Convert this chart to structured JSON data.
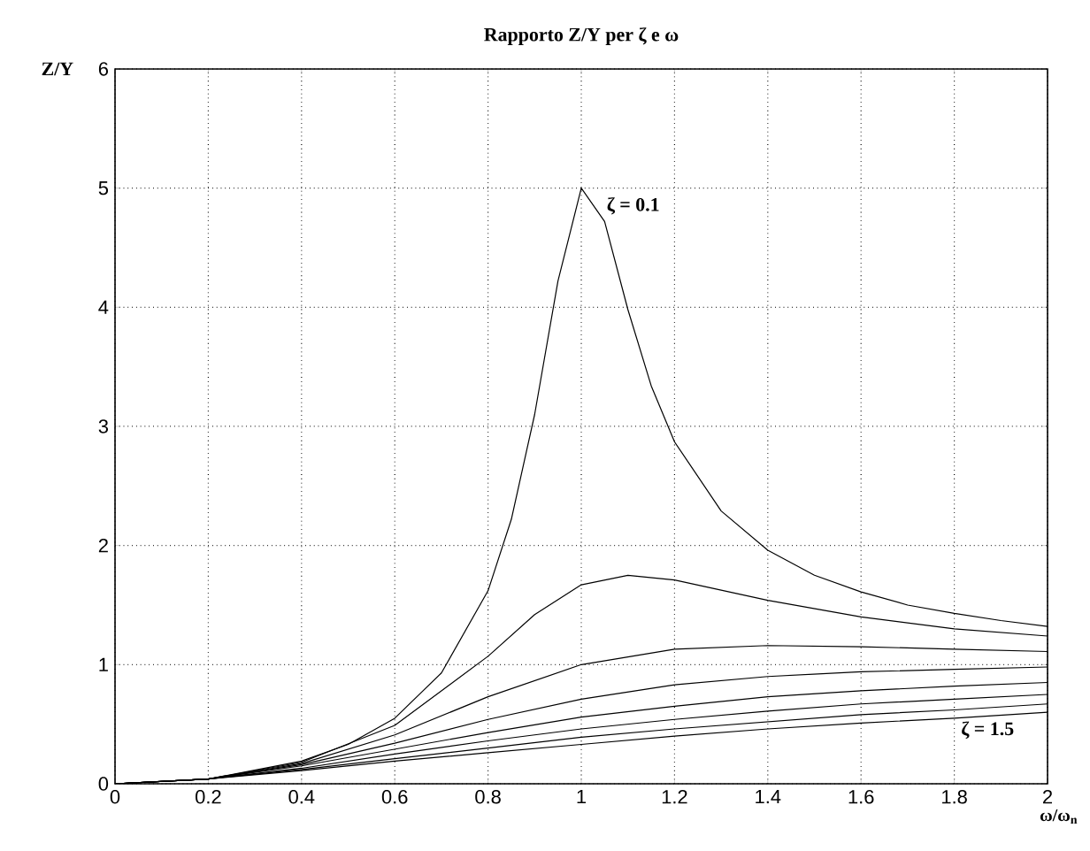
{
  "chart_data": {
    "type": "line",
    "title": "Rapporto Z/Y per ζ e ω",
    "xlabel": "ω/ω$_{n}$",
    "ylabel": "Z/Y",
    "xlim": [
      0,
      2
    ],
    "ylim": [
      0,
      6
    ],
    "xticks": [
      0,
      0.2,
      0.4,
      0.6,
      0.8,
      1,
      1.2,
      1.4,
      1.6,
      1.8,
      2
    ],
    "yticks": [
      0,
      1,
      2,
      3,
      4,
      5,
      6
    ],
    "grid": true,
    "marker": "none",
    "line_style": "solid",
    "annotations": [
      {
        "text": "ζ = 0.1",
        "x": 1.05,
        "y": 4.85
      },
      "ζ = 1.5"
    ],
    "series": [
      {
        "color": "#000000",
        "x": [
          0,
          0.2,
          0.4,
          0.5,
          0.6,
          0.7,
          0.8,
          0.85,
          0.9,
          0.95,
          1,
          1.05,
          1.1,
          1.15,
          1.2,
          1.3,
          1.4,
          1.5,
          1.6,
          1.7,
          1.8,
          1.9,
          2
        ],
        "values": [
          0,
          0.04,
          0.19,
          0.33,
          0.55,
          0.93,
          1.62,
          2.22,
          3.1,
          4.22,
          5,
          4.72,
          3.98,
          3.34,
          2.87,
          2.29,
          1.96,
          1.75,
          1.61,
          1.5,
          1.43,
          1.37,
          1.32
        ]
      },
      {
        "color": "#000000",
        "x": [
          0,
          0.2,
          0.4,
          0.6,
          0.8,
          0.9,
          1,
          1.1,
          1.2,
          1.4,
          1.6,
          1.8,
          2
        ],
        "values": [
          0,
          0.04,
          0.18,
          0.49,
          1.07,
          1.42,
          1.67,
          1.75,
          1.71,
          1.54,
          1.4,
          1.3,
          1.24
        ]
      },
      {
        "color": "#000000",
        "x": [
          0,
          0.2,
          0.4,
          0.6,
          0.8,
          1,
          1.2,
          1.4,
          1.6,
          1.8,
          2
        ],
        "values": [
          0,
          0.04,
          0.17,
          0.41,
          0.73,
          1,
          1.13,
          1.16,
          1.15,
          1.13,
          1.11
        ]
      },
      {
        "color": "#000000",
        "x": [
          0,
          0.2,
          0.4,
          0.6,
          0.8,
          1,
          1.2,
          1.4,
          1.6,
          1.8,
          2
        ],
        "values": [
          0,
          0.04,
          0.16,
          0.34,
          0.54,
          0.71,
          0.83,
          0.9,
          0.94,
          0.96,
          0.98
        ]
      },
      {
        "color": "#000000",
        "x": [
          0,
          0.2,
          0.4,
          0.6,
          0.8,
          1,
          1.2,
          1.4,
          1.6,
          1.8,
          2
        ],
        "values": [
          0,
          0.04,
          0.15,
          0.29,
          0.43,
          0.56,
          0.65,
          0.73,
          0.78,
          0.82,
          0.85
        ]
      },
      {
        "color": "#000000",
        "x": [
          0,
          0.2,
          0.4,
          0.6,
          0.8,
          1,
          1.2,
          1.4,
          1.6,
          1.8,
          2
        ],
        "values": [
          0,
          0.04,
          0.13,
          0.25,
          0.36,
          0.46,
          0.54,
          0.61,
          0.67,
          0.71,
          0.75
        ]
      },
      {
        "color": "#000000",
        "x": [
          0,
          0.2,
          0.4,
          0.6,
          0.8,
          1,
          1.2,
          1.4,
          1.6,
          1.8,
          2
        ],
        "values": [
          0,
          0.04,
          0.12,
          0.21,
          0.3,
          0.39,
          0.46,
          0.52,
          0.58,
          0.62,
          0.67
        ]
      },
      {
        "color": "#000000",
        "x": [
          0,
          0.2,
          0.4,
          0.6,
          0.8,
          1,
          1.2,
          1.4,
          1.6,
          1.8,
          2
        ],
        "values": [
          0,
          0.04,
          0.11,
          0.19,
          0.26,
          0.33,
          0.4,
          0.46,
          0.51,
          0.55,
          0.6
        ]
      }
    ]
  }
}
